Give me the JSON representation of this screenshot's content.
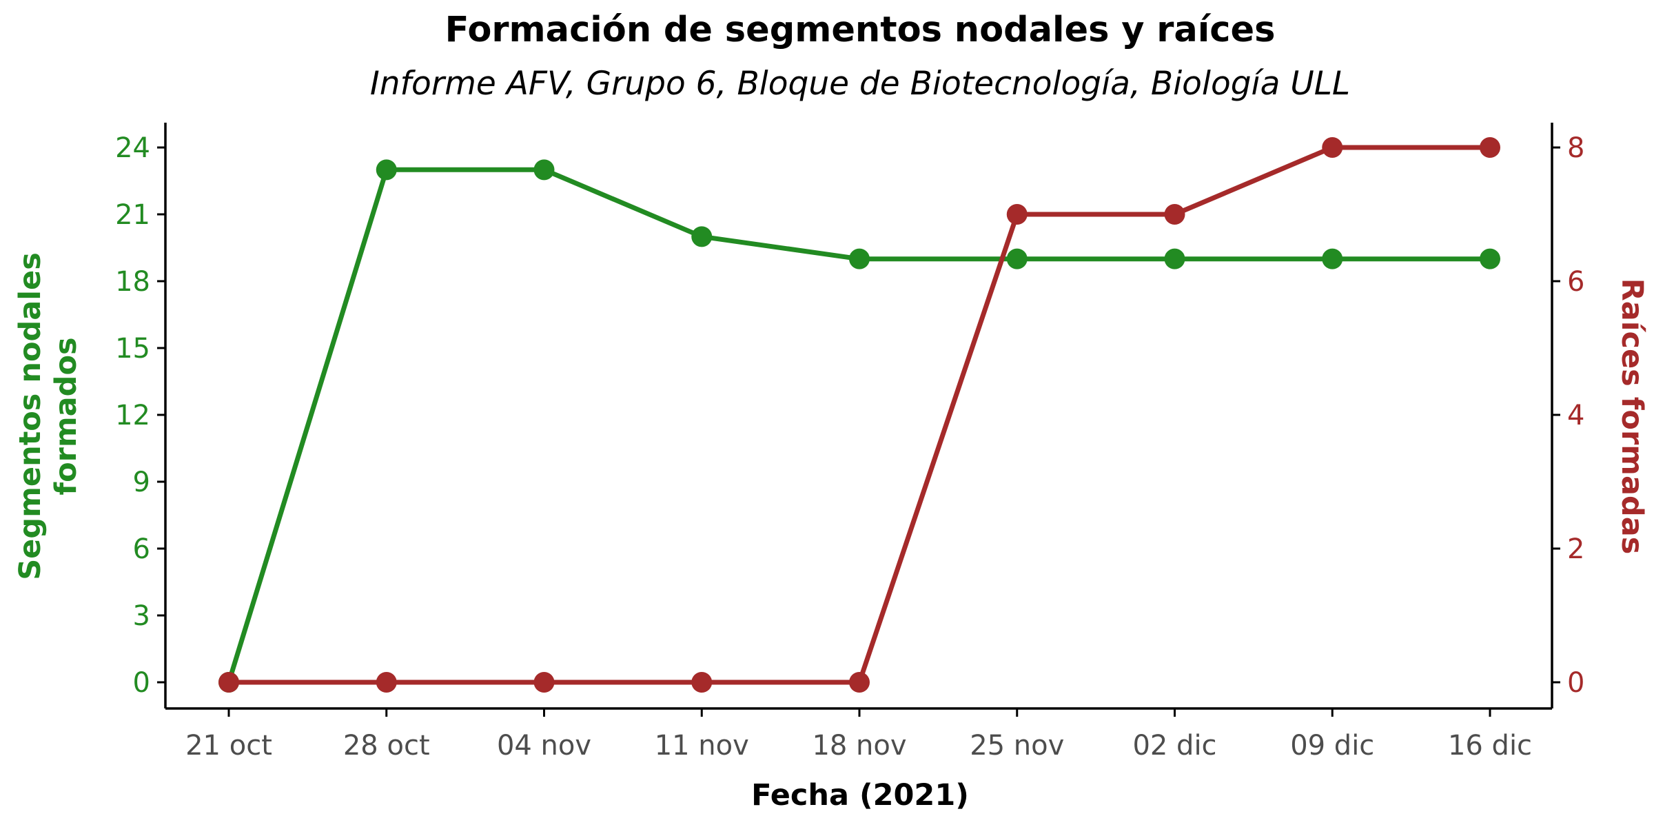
{
  "chart_data": {
    "type": "line",
    "title": "Formación de segmentos nodales y raíces",
    "subtitle": "Informe AFV, Grupo 6, Bloque de Biotecnología, Biología ULL",
    "xlabel": "Fecha (2021)",
    "ylabel_left": "Segmentos nodales formados",
    "ylabel_left_lines": [
      "Segmentos nodales",
      "formados"
    ],
    "ylabel_right": "Raíces formadas",
    "categories": [
      "21 oct",
      "28 oct",
      "04 nov",
      "11 nov",
      "18 nov",
      "25 nov",
      "02 dic",
      "09 dic",
      "16 dic"
    ],
    "series": [
      {
        "axis": "left",
        "color": "#228b22",
        "values": [
          0,
          23,
          23,
          20,
          19,
          19,
          19,
          19,
          19
        ]
      },
      {
        "axis": "right",
        "color": "#a52a2a",
        "values": [
          0,
          0,
          0,
          0,
          0,
          7,
          7,
          8,
          8
        ]
      }
    ],
    "y_left": {
      "min": 0,
      "max": 24,
      "ticks": [
        0,
        3,
        6,
        9,
        12,
        15,
        18,
        21,
        24
      ],
      "color": "#228b22"
    },
    "y_right": {
      "min": 0,
      "max": 8,
      "ticks": [
        0,
        2,
        4,
        6,
        8
      ],
      "color": "#a52a2a"
    },
    "grid": false,
    "legend": "none"
  }
}
